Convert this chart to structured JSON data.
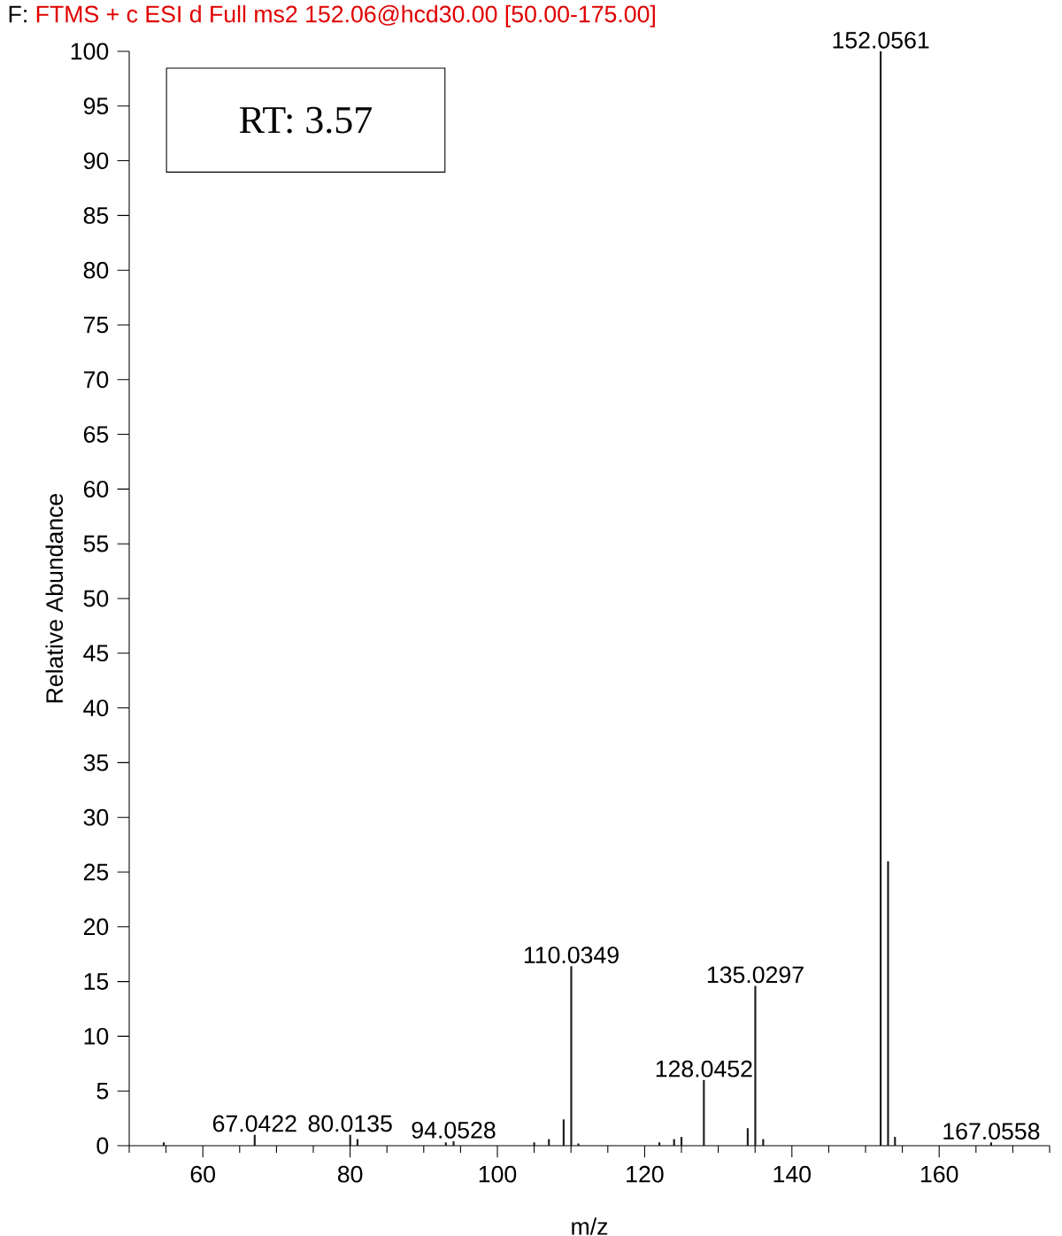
{
  "chart_data": {
    "type": "bar",
    "title": "F:",
    "subtitle": "FTMS + c ESI d Full ms2 152.06@hcd30.00 [50.00-175.00]",
    "xlabel": "m/z",
    "ylabel": "Relative Abundance",
    "color": "#1a1a1a",
    "x": [
      54.7,
      67.0422,
      80.0135,
      81.0,
      93.0,
      94.0528,
      105.0,
      107.0,
      109.0,
      110.0349,
      111.0,
      122.0,
      124.0,
      125.0,
      128.0452,
      134.0,
      135.0297,
      136.1,
      152.0561,
      153.06,
      154.0,
      167.0558
    ],
    "values": [
      0.3,
      1.0,
      1.0,
      0.6,
      0.3,
      0.4,
      0.3,
      0.6,
      2.4,
      16.4,
      0.2,
      0.3,
      0.6,
      0.8,
      6.0,
      1.6,
      14.6,
      0.6,
      100,
      26,
      0.8,
      0.3
    ],
    "xlim": [
      50,
      175
    ],
    "ylim": [
      0,
      100
    ],
    "xticks": [
      {
        "value": 50,
        "label": null
      },
      {
        "value": 55,
        "label": null
      },
      60,
      {
        "value": 65,
        "label": null
      },
      {
        "value": 70,
        "label": null
      },
      {
        "value": 75,
        "label": null
      },
      80,
      {
        "value": 85,
        "label": null
      },
      {
        "value": 90,
        "label": null
      },
      {
        "value": 95,
        "label": null
      },
      100,
      {
        "value": 105,
        "label": null
      },
      {
        "value": 110,
        "label": null
      },
      {
        "value": 115,
        "label": null
      },
      120,
      {
        "value": 125,
        "label": null
      },
      {
        "value": 130,
        "label": null
      },
      {
        "value": 135,
        "label": null
      },
      140,
      {
        "value": 145,
        "label": null
      },
      {
        "value": 150,
        "label": null
      },
      {
        "value": 155,
        "label": null
      },
      160,
      {
        "value": 165,
        "label": null
      },
      {
        "value": 170,
        "label": null
      },
      {
        "value": 175,
        "label": null
      }
    ],
    "yticks": [
      0,
      5,
      10,
      15,
      20,
      25,
      30,
      35,
      40,
      45,
      50,
      55,
      60,
      65,
      70,
      75,
      80,
      85,
      90,
      95,
      100
    ],
    "annotations": [
      "RT: 3.57",
      {
        "text": "67.0422",
        "x": 67.0422,
        "y": 1.0
      },
      {
        "text": "80.0135",
        "x": 80.0135,
        "y": 1.0
      },
      {
        "text": "94.0528",
        "x": 94.0528,
        "y": 0.4
      },
      {
        "text": "110.0349",
        "x": 110.0349,
        "y": 16.4
      },
      {
        "text": "128.0452",
        "x": 128.0452,
        "y": 6.0
      },
      {
        "text": "135.0297",
        "x": 135.0297,
        "y": 14.6
      },
      {
        "text": "152.0561",
        "x": 152.0561,
        "y": 100
      },
      {
        "text": "167.0558",
        "x": 167.0558,
        "y": 0.3
      }
    ]
  }
}
